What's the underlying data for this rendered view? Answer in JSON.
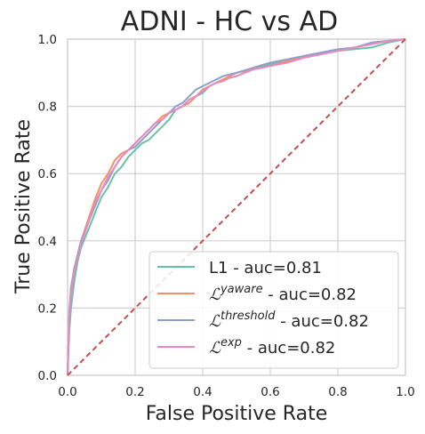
{
  "chart_data": {
    "type": "line",
    "title": "ADNI - HC vs AD",
    "xlabel": "False Positive Rate",
    "ylabel": "True Positive Rate",
    "xlim": [
      0.0,
      1.0
    ],
    "ylim": [
      0.0,
      1.0
    ],
    "xticks": [
      "0.0",
      "0.2",
      "0.4",
      "0.6",
      "0.8",
      "1.0"
    ],
    "yticks": [
      "0.0",
      "0.2",
      "0.4",
      "0.6",
      "0.8",
      "1.0"
    ],
    "grid": true,
    "legend_position": "lower-right",
    "series": [
      {
        "name": "L1 - auc=0.81",
        "color": "#66c2a5",
        "x": [
          0.0,
          0.005,
          0.01,
          0.02,
          0.03,
          0.04,
          0.06,
          0.08,
          0.1,
          0.12,
          0.14,
          0.16,
          0.18,
          0.2,
          0.22,
          0.24,
          0.26,
          0.28,
          0.3,
          0.32,
          0.34,
          0.36,
          0.38,
          0.4,
          0.42,
          0.44,
          0.46,
          0.48,
          0.5,
          0.55,
          0.6,
          0.65,
          0.7,
          0.75,
          0.8,
          0.85,
          0.9,
          0.95,
          1.0
        ],
        "y": [
          0.0,
          0.13,
          0.2,
          0.28,
          0.34,
          0.38,
          0.43,
          0.48,
          0.53,
          0.56,
          0.6,
          0.62,
          0.65,
          0.67,
          0.69,
          0.7,
          0.72,
          0.74,
          0.76,
          0.79,
          0.8,
          0.82,
          0.83,
          0.84,
          0.86,
          0.87,
          0.88,
          0.885,
          0.89,
          0.91,
          0.925,
          0.935,
          0.945,
          0.955,
          0.965,
          0.97,
          0.975,
          0.99,
          1.0
        ]
      },
      {
        "name": "yaware - auc=0.82",
        "color": "#fc8d62",
        "x": [
          0.0,
          0.005,
          0.01,
          0.02,
          0.03,
          0.04,
          0.06,
          0.08,
          0.1,
          0.12,
          0.14,
          0.16,
          0.18,
          0.2,
          0.22,
          0.24,
          0.26,
          0.28,
          0.3,
          0.32,
          0.34,
          0.36,
          0.38,
          0.4,
          0.42,
          0.44,
          0.46,
          0.48,
          0.5,
          0.55,
          0.6,
          0.65,
          0.7,
          0.75,
          0.8,
          0.85,
          0.9,
          0.95,
          1.0
        ],
        "y": [
          0.0,
          0.18,
          0.25,
          0.31,
          0.36,
          0.4,
          0.46,
          0.52,
          0.57,
          0.6,
          0.64,
          0.66,
          0.67,
          0.69,
          0.71,
          0.73,
          0.75,
          0.77,
          0.78,
          0.79,
          0.8,
          0.81,
          0.83,
          0.85,
          0.86,
          0.87,
          0.88,
          0.89,
          0.9,
          0.91,
          0.92,
          0.935,
          0.945,
          0.955,
          0.965,
          0.975,
          0.985,
          0.995,
          1.0
        ]
      },
      {
        "name": "threshold - auc=0.82",
        "color": "#8da0cb",
        "x": [
          0.0,
          0.005,
          0.01,
          0.02,
          0.03,
          0.04,
          0.06,
          0.08,
          0.1,
          0.12,
          0.14,
          0.16,
          0.18,
          0.2,
          0.22,
          0.24,
          0.26,
          0.28,
          0.3,
          0.32,
          0.34,
          0.36,
          0.38,
          0.4,
          0.42,
          0.44,
          0.46,
          0.48,
          0.5,
          0.55,
          0.6,
          0.65,
          0.7,
          0.75,
          0.8,
          0.85,
          0.9,
          0.95,
          1.0
        ],
        "y": [
          0.0,
          0.19,
          0.26,
          0.32,
          0.36,
          0.4,
          0.45,
          0.5,
          0.55,
          0.58,
          0.62,
          0.65,
          0.67,
          0.68,
          0.7,
          0.72,
          0.74,
          0.76,
          0.78,
          0.8,
          0.81,
          0.83,
          0.85,
          0.86,
          0.87,
          0.88,
          0.89,
          0.895,
          0.9,
          0.915,
          0.93,
          0.94,
          0.95,
          0.96,
          0.97,
          0.975,
          0.99,
          0.995,
          1.0
        ]
      },
      {
        "name": "exp - auc=0.82",
        "color": "#e78ac3",
        "x": [
          0.0,
          0.005,
          0.01,
          0.02,
          0.03,
          0.04,
          0.06,
          0.08,
          0.1,
          0.12,
          0.14,
          0.16,
          0.18,
          0.2,
          0.22,
          0.24,
          0.26,
          0.28,
          0.3,
          0.32,
          0.34,
          0.36,
          0.38,
          0.4,
          0.42,
          0.44,
          0.46,
          0.48,
          0.5,
          0.55,
          0.6,
          0.65,
          0.7,
          0.75,
          0.8,
          0.85,
          0.9,
          0.95,
          1.0
        ],
        "y": [
          0.0,
          0.17,
          0.24,
          0.31,
          0.35,
          0.39,
          0.45,
          0.51,
          0.55,
          0.59,
          0.62,
          0.65,
          0.67,
          0.69,
          0.71,
          0.73,
          0.75,
          0.76,
          0.78,
          0.79,
          0.8,
          0.82,
          0.83,
          0.845,
          0.86,
          0.87,
          0.875,
          0.885,
          0.89,
          0.91,
          0.92,
          0.93,
          0.945,
          0.955,
          0.965,
          0.975,
          0.985,
          0.995,
          1.0
        ]
      }
    ],
    "diagonal": {
      "x": [
        0.0,
        1.0
      ],
      "y": [
        0.0,
        1.0
      ],
      "color": "#c44e52",
      "style": "dashed"
    }
  },
  "legend": [
    {
      "prefix": "L1",
      "sup": "",
      "suffix": " - auc=0.81",
      "color": "#66c2a5"
    },
    {
      "prefix": "ℒ",
      "sup": "yaware",
      "suffix": " - auc=0.82",
      "color": "#fc8d62"
    },
    {
      "prefix": "ℒ",
      "sup": "threshold",
      "suffix": " - auc=0.82",
      "color": "#8da0cb"
    },
    {
      "prefix": "ℒ",
      "sup": "exp",
      "suffix": " - auc=0.82",
      "color": "#e78ac3"
    }
  ]
}
